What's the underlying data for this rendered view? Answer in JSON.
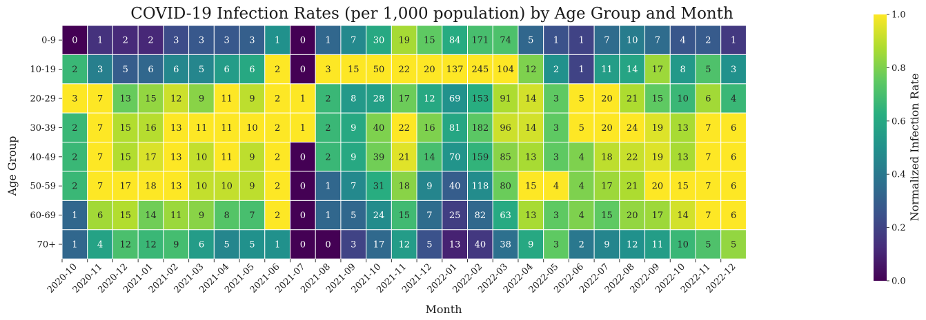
{
  "chart_data": {
    "type": "heatmap",
    "title": "COVID-19 Infection Rates (per 1,000 population) by Age Group and Month",
    "xlabel": "Month",
    "ylabel": "Age Group",
    "x": [
      "2020-10",
      "2020-11",
      "2020-12",
      "2021-01",
      "2021-02",
      "2021-03",
      "2021-04",
      "2021-05",
      "2021-06",
      "2021-07",
      "2021-08",
      "2021-09",
      "2021-10",
      "2021-11",
      "2021-12",
      "2022-01",
      "2022-02",
      "2022-03",
      "2022-04",
      "2022-05",
      "2022-06",
      "2022-07",
      "2022-08",
      "2022-09",
      "2022-10",
      "2022-11",
      "2022-12"
    ],
    "y": [
      "0-9",
      "10-19",
      "20-29",
      "30-39",
      "40-49",
      "50-59",
      "60-69",
      "70+"
    ],
    "values": [
      [
        0,
        1,
        2,
        2,
        3,
        3,
        3,
        3,
        1,
        0,
        1,
        7,
        30,
        19,
        15,
        84,
        171,
        74,
        5,
        1,
        1,
        7,
        10,
        7,
        4,
        2,
        1
      ],
      [
        2,
        3,
        5,
        6,
        6,
        5,
        6,
        6,
        2,
        0,
        3,
        15,
        50,
        22,
        20,
        137,
        245,
        104,
        12,
        2,
        1,
        11,
        14,
        17,
        8,
        5,
        3
      ],
      [
        3,
        7,
        13,
        15,
        12,
        9,
        11,
        9,
        2,
        1,
        2,
        8,
        28,
        17,
        12,
        69,
        153,
        91,
        14,
        3,
        5,
        20,
        21,
        15,
        10,
        6,
        4
      ],
      [
        2,
        7,
        15,
        16,
        13,
        11,
        11,
        10,
        2,
        1,
        2,
        9,
        40,
        22,
        16,
        81,
        182,
        96,
        14,
        3,
        5,
        20,
        24,
        19,
        13,
        7,
        6
      ],
      [
        2,
        7,
        15,
        17,
        13,
        10,
        11,
        9,
        2,
        0,
        2,
        9,
        39,
        21,
        14,
        70,
        159,
        85,
        13,
        3,
        4,
        18,
        22,
        19,
        13,
        7,
        6
      ],
      [
        2,
        7,
        17,
        18,
        13,
        10,
        10,
        9,
        2,
        0,
        1,
        7,
        31,
        18,
        9,
        40,
        118,
        80,
        15,
        4,
        4,
        17,
        21,
        20,
        15,
        7,
        6
      ],
      [
        1,
        6,
        15,
        14,
        11,
        9,
        8,
        7,
        2,
        0,
        1,
        5,
        24,
        15,
        7,
        25,
        82,
        63,
        13,
        3,
        4,
        15,
        20,
        17,
        14,
        7,
        6
      ],
      [
        1,
        4,
        12,
        12,
        9,
        6,
        5,
        5,
        1,
        0,
        0,
        3,
        17,
        12,
        5,
        13,
        40,
        38,
        9,
        3,
        2,
        9,
        12,
        11,
        10,
        5,
        5
      ]
    ],
    "normalization": "per-column (value / column max)",
    "colormap": "viridis",
    "colorbar": {
      "label": "Normalized Infection Rate",
      "range": [
        0.0,
        1.0
      ],
      "ticks": [
        "0.0",
        "0.2",
        "0.4",
        "0.6",
        "0.8",
        "1.0"
      ]
    },
    "grid": false,
    "legend": "none"
  }
}
